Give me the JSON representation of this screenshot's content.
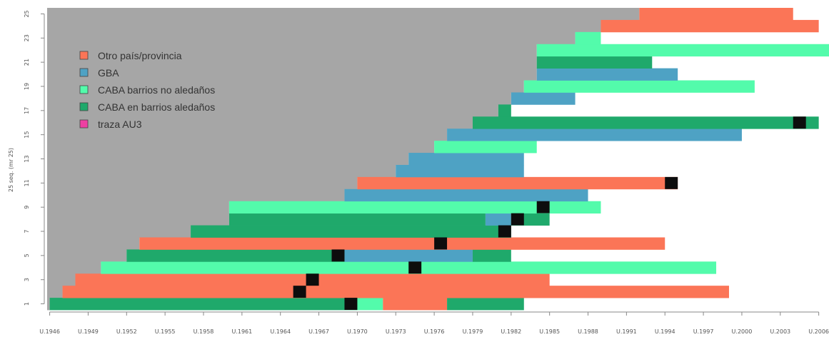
{
  "chart_data": {
    "type": "bar",
    "ylabel": "25 seq. (mr 25)",
    "ylim": [
      0.5,
      25.5
    ],
    "xlim": [
      1946.3,
      2007.3
    ],
    "grid": false,
    "legend_placement": "top-left",
    "x_ticks": [
      {
        "value": 1946.5,
        "label": "U.1946"
      },
      {
        "value": 1949.5,
        "label": "U.1949"
      },
      {
        "value": 1952.5,
        "label": "U.1952"
      },
      {
        "value": 1955.5,
        "label": "U.1955"
      },
      {
        "value": 1958.5,
        "label": "U.1958"
      },
      {
        "value": 1961.5,
        "label": "U.1961"
      },
      {
        "value": 1964.5,
        "label": "U.1964"
      },
      {
        "value": 1967.5,
        "label": "U.1967"
      },
      {
        "value": 1970.5,
        "label": "U.1970"
      },
      {
        "value": 1973.5,
        "label": "U.1973"
      },
      {
        "value": 1976.5,
        "label": "U.1976"
      },
      {
        "value": 1979.5,
        "label": "U.1979"
      },
      {
        "value": 1982.5,
        "label": "U.1982"
      },
      {
        "value": 1985.5,
        "label": "U.1985"
      },
      {
        "value": 1988.5,
        "label": "U.1988"
      },
      {
        "value": 1991.5,
        "label": "U.1991"
      },
      {
        "value": 1994.5,
        "label": "U.1994"
      },
      {
        "value": 1997.5,
        "label": "U.1997"
      },
      {
        "value": 2000.5,
        "label": "U.2000"
      },
      {
        "value": 2003.5,
        "label": "U.2003"
      },
      {
        "value": 2006.5,
        "label": "U.2006"
      }
    ],
    "y_ticks": [
      {
        "value": 1,
        "label": "1"
      },
      {
        "value": 3,
        "label": "3"
      },
      {
        "value": 5,
        "label": "5"
      },
      {
        "value": 7,
        "label": "7"
      },
      {
        "value": 9,
        "label": "9"
      },
      {
        "value": 11,
        "label": "11"
      },
      {
        "value": 13,
        "label": "13"
      },
      {
        "value": 15,
        "label": "15"
      },
      {
        "value": 17,
        "label": "17"
      },
      {
        "value": 19,
        "label": "19"
      },
      {
        "value": 21,
        "label": "21"
      },
      {
        "value": 23,
        "label": "23"
      },
      {
        "value": 25,
        "label": "25"
      }
    ],
    "background_color": "#a6a6a6",
    "categories": [
      {
        "key": "otro",
        "name": "Otro país/provincia",
        "color": "#fb7557"
      },
      {
        "key": "gba",
        "name": "GBA",
        "color": "#4ea2c4"
      },
      {
        "key": "caba_no",
        "name": "CABA barrios no aledaños",
        "color": "#53fbab"
      },
      {
        "key": "caba_ale",
        "name": "CABA en barrios aledaños",
        "color": "#1fa96b"
      },
      {
        "key": "traza",
        "name": "traza AU3",
        "color": "#ee3fa2"
      }
    ],
    "marker_color": "#0d0d0d",
    "sequences": [
      {
        "seq": 1,
        "start": 1946.5,
        "segments": [
          {
            "cat": "caba_ale",
            "from": 1946.5,
            "to": 1970.5
          },
          {
            "cat": "caba_no",
            "from": 1970.5,
            "to": 1972.5
          },
          {
            "cat": "otro",
            "from": 1972.5,
            "to": 1977.5
          },
          {
            "cat": "caba_ale",
            "from": 1977.5,
            "to": 1983.5
          }
        ],
        "markers": [
          1970
        ]
      },
      {
        "seq": 2,
        "start": 1947.5,
        "segments": [
          {
            "cat": "otro",
            "from": 1947.5,
            "to": 1999.5
          }
        ],
        "markers": [
          1966
        ]
      },
      {
        "seq": 3,
        "start": 1948.5,
        "segments": [
          {
            "cat": "otro",
            "from": 1948.5,
            "to": 1985.5
          }
        ],
        "markers": [
          1967
        ]
      },
      {
        "seq": 4,
        "start": 1950.5,
        "segments": [
          {
            "cat": "caba_no",
            "from": 1950.5,
            "to": 1998.5
          }
        ],
        "markers": [
          1975
        ]
      },
      {
        "seq": 5,
        "start": 1952.5,
        "segments": [
          {
            "cat": "caba_ale",
            "from": 1952.5,
            "to": 1969.5
          },
          {
            "cat": "gba",
            "from": 1969.5,
            "to": 1979.5
          },
          {
            "cat": "caba_ale",
            "from": 1979.5,
            "to": 1982.5
          }
        ],
        "markers": [
          1969
        ]
      },
      {
        "seq": 6,
        "start": 1953.5,
        "segments": [
          {
            "cat": "otro",
            "from": 1953.5,
            "to": 1994.5
          }
        ],
        "markers": [
          1977
        ]
      },
      {
        "seq": 7,
        "start": 1957.5,
        "segments": [
          {
            "cat": "caba_ale",
            "from": 1957.5,
            "to": 1982.5
          }
        ],
        "markers": [
          1982
        ]
      },
      {
        "seq": 8,
        "start": 1960.5,
        "segments": [
          {
            "cat": "caba_ale",
            "from": 1960.5,
            "to": 1980.5
          },
          {
            "cat": "gba",
            "from": 1980.5,
            "to": 1982.5
          },
          {
            "cat": "caba_ale",
            "from": 1982.5,
            "to": 1985.5
          }
        ],
        "markers": [
          1983
        ]
      },
      {
        "seq": 9,
        "start": 1960.5,
        "segments": [
          {
            "cat": "caba_no",
            "from": 1960.5,
            "to": 1989.5
          }
        ],
        "markers": [
          1985
        ]
      },
      {
        "seq": 10,
        "start": 1969.5,
        "segments": [
          {
            "cat": "gba",
            "from": 1969.5,
            "to": 1988.5
          }
        ],
        "markers": []
      },
      {
        "seq": 11,
        "start": 1970.5,
        "segments": [
          {
            "cat": "otro",
            "from": 1970.5,
            "to": 1995.5
          }
        ],
        "markers": [
          1995
        ]
      },
      {
        "seq": 12,
        "start": 1973.5,
        "segments": [
          {
            "cat": "gba",
            "from": 1973.5,
            "to": 1983.5
          }
        ],
        "markers": []
      },
      {
        "seq": 13,
        "start": 1974.5,
        "segments": [
          {
            "cat": "gba",
            "from": 1974.5,
            "to": 1983.5
          }
        ],
        "markers": []
      },
      {
        "seq": 14,
        "start": 1976.5,
        "segments": [
          {
            "cat": "caba_no",
            "from": 1976.5,
            "to": 1984.5
          }
        ],
        "markers": []
      },
      {
        "seq": 15,
        "start": 1977.5,
        "segments": [
          {
            "cat": "gba",
            "from": 1977.5,
            "to": 2000.5
          }
        ],
        "markers": []
      },
      {
        "seq": 16,
        "start": 1979.5,
        "segments": [
          {
            "cat": "caba_ale",
            "from": 1979.5,
            "to": 2006.5
          }
        ],
        "markers": [
          2005
        ]
      },
      {
        "seq": 17,
        "start": 1981.5,
        "segments": [
          {
            "cat": "caba_ale",
            "from": 1981.5,
            "to": 1982.5
          }
        ],
        "markers": []
      },
      {
        "seq": 18,
        "start": 1982.5,
        "segments": [
          {
            "cat": "gba",
            "from": 1982.5,
            "to": 1987.5
          }
        ],
        "markers": []
      },
      {
        "seq": 19,
        "start": 1983.5,
        "segments": [
          {
            "cat": "caba_no",
            "from": 1983.5,
            "to": 2001.5
          }
        ],
        "markers": []
      },
      {
        "seq": 20,
        "start": 1984.5,
        "segments": [
          {
            "cat": "gba",
            "from": 1984.5,
            "to": 1995.5
          }
        ],
        "markers": []
      },
      {
        "seq": 21,
        "start": 1984.5,
        "segments": [
          {
            "cat": "caba_ale",
            "from": 1984.5,
            "to": 1993.5
          }
        ],
        "markers": []
      },
      {
        "seq": 22,
        "start": 1984.5,
        "segments": [
          {
            "cat": "caba_no",
            "from": 1984.5,
            "to": 2007.5
          }
        ],
        "markers": []
      },
      {
        "seq": 23,
        "start": 1987.5,
        "segments": [
          {
            "cat": "caba_no",
            "from": 1987.5,
            "to": 1989.5
          }
        ],
        "markers": []
      },
      {
        "seq": 24,
        "start": 1989.5,
        "segments": [
          {
            "cat": "otro",
            "from": 1989.5,
            "to": 2006.5
          }
        ],
        "markers": []
      },
      {
        "seq": 25,
        "start": 1992.5,
        "segments": [
          {
            "cat": "otro",
            "from": 1992.5,
            "to": 2004.5
          }
        ],
        "markers": []
      }
    ]
  }
}
